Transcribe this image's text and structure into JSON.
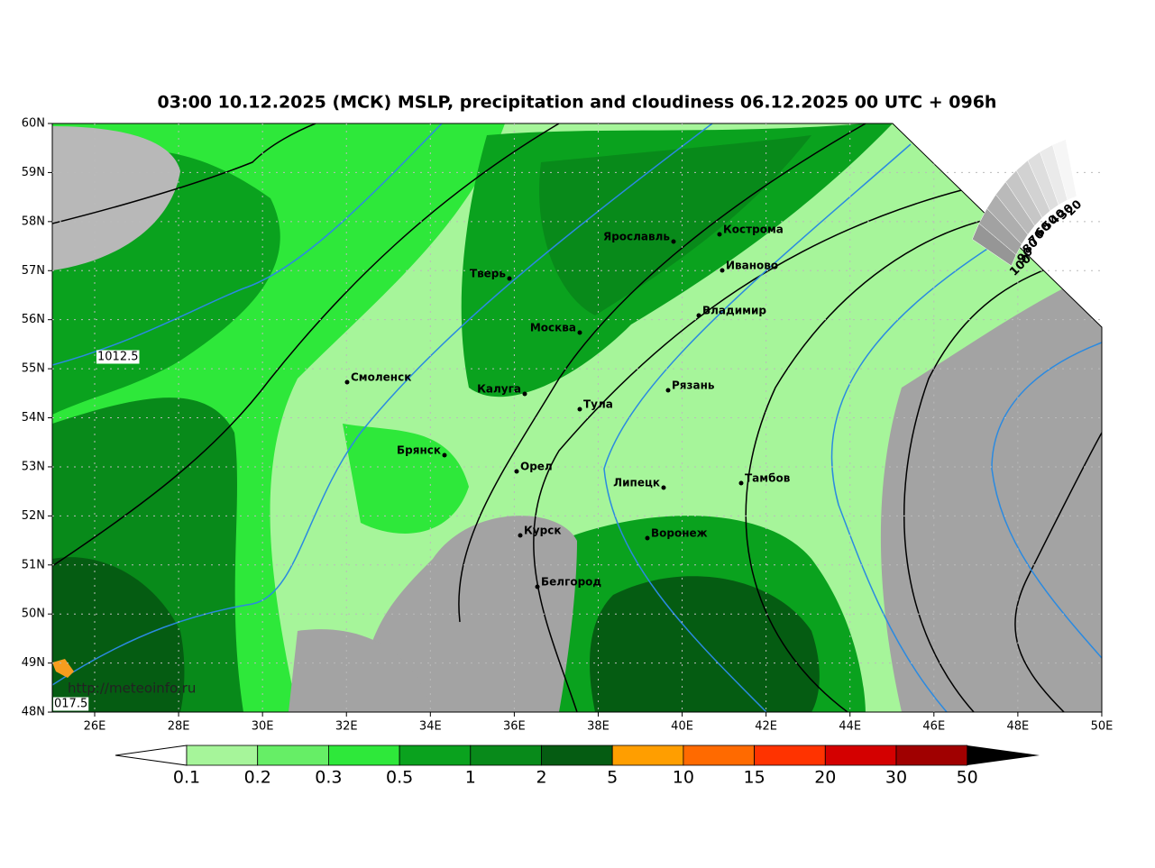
{
  "title": "03:00 10.12.2025 (МСК) MSLP, precipitation and cloudiness 06.12.2025 00 UTC + 096h",
  "lat_labels": [
    "60N",
    "59N",
    "58N",
    "57N",
    "56N",
    "55N",
    "54N",
    "53N",
    "52N",
    "51N",
    "50N",
    "49N",
    "48N"
  ],
  "lon_labels": [
    "26E",
    "28E",
    "30E",
    "32E",
    "34E",
    "36E",
    "38E",
    "40E",
    "42E",
    "44E",
    "46E",
    "48E",
    "50E"
  ],
  "cities": [
    "Кострома",
    "Ярославль",
    "Иваново",
    "Тверь",
    "Владимир",
    "Москва",
    "Смоленск",
    "Калуга",
    "Рязань",
    "Тула",
    "Брянск",
    "Орел",
    "Липецк",
    "Тамбов",
    "Курск",
    "Воронеж",
    "Белгород"
  ],
  "isobar_labels": [
    "1012.5",
    "017.5"
  ],
  "watermark": "http://meteoinfo.ru",
  "cloudiness_labels": [
    "100",
    "90",
    "80",
    "70",
    "60",
    "50",
    "40",
    "30",
    "20"
  ],
  "colorbar_labels": [
    "0.1",
    "0.2",
    "0.3",
    "0.5",
    "1",
    "2",
    "5",
    "10",
    "15",
    "20",
    "30",
    "50"
  ]
}
